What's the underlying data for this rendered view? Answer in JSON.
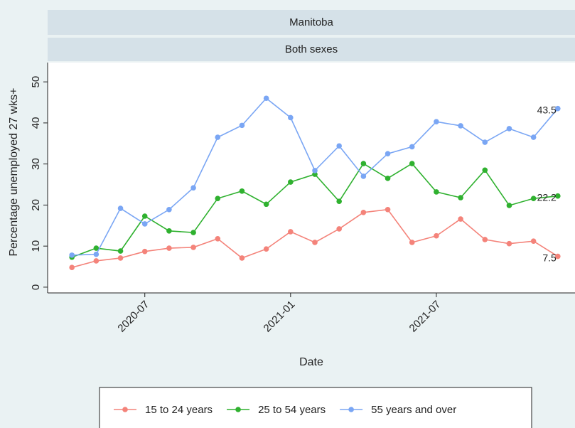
{
  "chart_data": {
    "type": "line",
    "panel": "Manitoba",
    "subpanel": "Both sexes",
    "x_label": "Date",
    "y_label": "Percentage unemployed 27 wks+",
    "x": [
      "2020-04",
      "2020-05",
      "2020-06",
      "2020-07",
      "2020-08",
      "2020-09",
      "2020-10",
      "2020-11",
      "2020-12",
      "2021-01",
      "2021-02",
      "2021-03",
      "2021-04",
      "2021-05",
      "2021-06",
      "2021-07",
      "2021-08",
      "2021-09",
      "2021-10",
      "2021-11",
      "2021-12"
    ],
    "series": [
      {
        "name": "15 to 24 years",
        "color": "#f4837a",
        "values": [
          4.8,
          6.4,
          7.1,
          8.7,
          9.5,
          9.7,
          11.8,
          7.1,
          9.3,
          13.5,
          10.9,
          14.2,
          18.2,
          18.9,
          10.9,
          12.5,
          16.6,
          11.6,
          10.6,
          11.2,
          7.5
        ]
      },
      {
        "name": "25 to 54 years",
        "color": "#2fb12f",
        "values": [
          7.3,
          9.5,
          8.8,
          17.3,
          13.7,
          13.3,
          21.6,
          23.4,
          20.2,
          25.6,
          27.5,
          20.9,
          30.1,
          26.5,
          30.1,
          23.2,
          21.8,
          28.5,
          19.9,
          21.6,
          22.2
        ]
      },
      {
        "name": "55 years and over",
        "color": "#7aa6f4",
        "values": [
          7.8,
          8.0,
          19.2,
          15.4,
          18.9,
          24.2,
          36.5,
          39.4,
          46.0,
          41.3,
          28.4,
          34.4,
          27.0,
          32.5,
          34.2,
          40.3,
          39.3,
          35.3,
          38.6,
          36.5,
          43.5
        ]
      }
    ],
    "xlim": [
      "2020-03",
      "2022-01"
    ],
    "xticks": [
      "2020-07",
      "2021-01",
      "2021-07"
    ],
    "ylim": [
      -1.4,
      54.7
    ],
    "yticks": [
      0,
      10,
      20,
      30,
      40,
      50
    ],
    "legend": "bottom"
  }
}
